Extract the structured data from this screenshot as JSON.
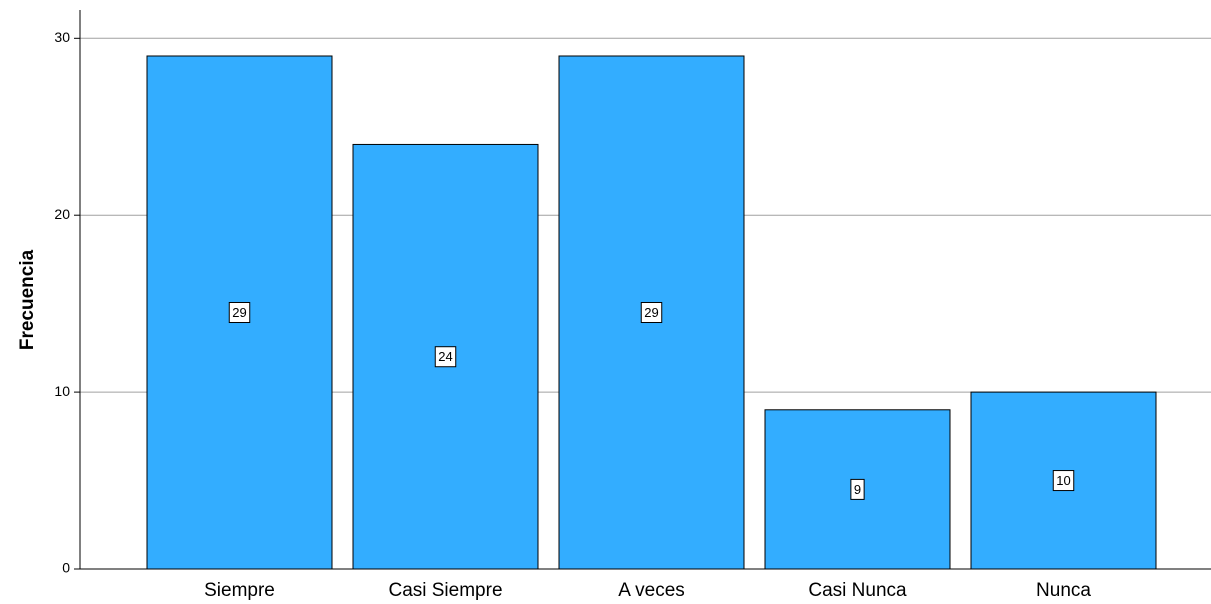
{
  "chart_data": {
    "type": "bar",
    "y_label": "Frecuencia",
    "categories": [
      "Siempre",
      "Casi Siempre",
      "A veces",
      "Casi Nunca",
      "Nunca"
    ],
    "values": [
      29,
      24,
      29,
      9,
      10
    ],
    "color": "#33adff",
    "ylim": [
      0,
      31.6
    ],
    "yticks": [
      0,
      10,
      20,
      30
    ],
    "grid": true
  }
}
